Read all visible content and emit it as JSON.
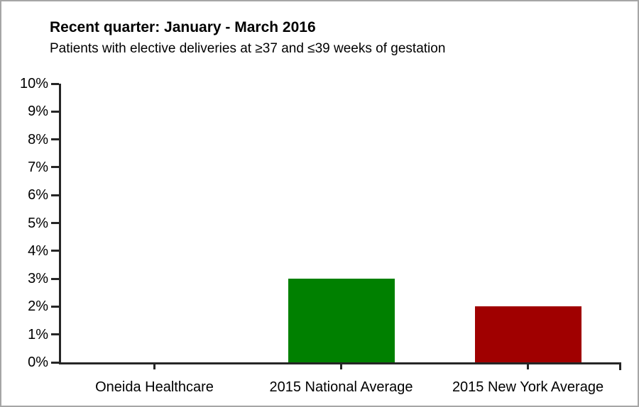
{
  "chart_data": {
    "type": "bar",
    "title": "Recent quarter: January - March 2016",
    "subtitle": "Patients with elective deliveries at ≥37 and ≤39 weeks of gestation",
    "categories": [
      "Oneida Healthcare",
      "2015 National Average",
      "2015 New York Average"
    ],
    "values": [
      0,
      3,
      2
    ],
    "unit": "%",
    "bar_colors": [
      null,
      "#008000",
      "#a00000"
    ],
    "ylim": [
      0,
      10
    ],
    "ytick_step": 1,
    "ytick_labels": [
      "0%",
      "1%",
      "2%",
      "3%",
      "4%",
      "5%",
      "6%",
      "7%",
      "8%",
      "9%",
      "10%"
    ],
    "grid": false,
    "legend": null,
    "axis_color": "#262626"
  }
}
